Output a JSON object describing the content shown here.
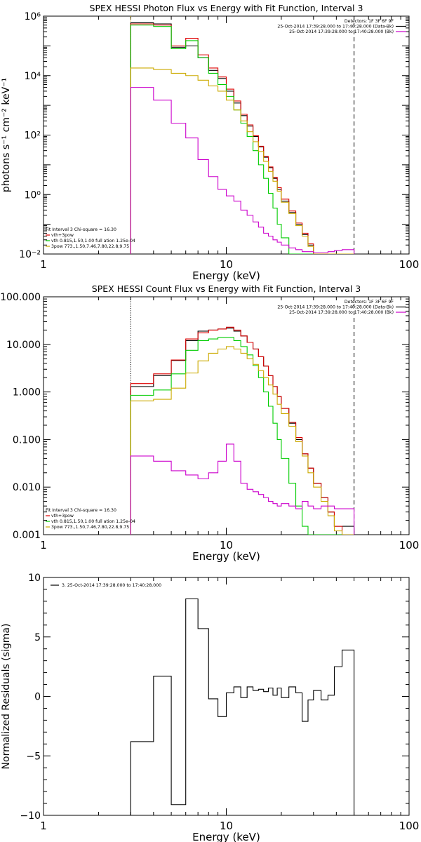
{
  "chart_data": [
    {
      "type": "line",
      "title": "SPEX HESSI Photon Flux vs Energy with Fit Function, Interval 3",
      "xlabel": "Energy (keV)",
      "ylabel": "photons s⁻¹ cm⁻² keV⁻¹",
      "x_scale": "log",
      "y_scale": "log",
      "xlim": [
        1,
        100
      ],
      "ylim": [
        0.01,
        1000000
      ],
      "x_ticks": [
        "1",
        "10",
        "100"
      ],
      "y_ticks": [
        "10⁻²",
        "10⁰",
        "10²",
        "10⁴",
        "10⁶"
      ],
      "y_tick_values": [
        0.01,
        1,
        100,
        10000,
        1000000
      ],
      "legend_top": [
        {
          "text": "Detectors: 1F 3F 6F 9F",
          "color": "#000000"
        },
        {
          "text": "25-Oct-2014 17:39:28.000 to 17:40:28.000 (Data-Bk)",
          "color": "#000000"
        },
        {
          "text": "25-Oct-2014 17:39:28.000 to 17:40:28.000 (Bk)",
          "color": "#cc00cc"
        }
      ],
      "legend_bottom": [
        {
          "text": "Fit Interval 3   Chi-square = 16.30",
          "color": "#000000"
        },
        {
          "text": "vth+3pow",
          "color": "#dd0000"
        },
        {
          "text": "vth 0.815,1.50,1.00  full ation 1.25e-04",
          "color": "#00cc00"
        },
        {
          "text": "3pow 773.,1.50,7.46,7.80,22.8,9.75",
          "color": "#ccaa00"
        }
      ],
      "vlines": [
        {
          "x": 3,
          "style": "dotted",
          "color": "#ccaa00"
        },
        {
          "x": 50,
          "style": "dashed",
          "color": "#000000"
        }
      ],
      "edges": [
        3,
        4,
        5,
        6,
        7,
        8,
        9,
        10,
        11,
        12,
        13,
        14,
        15,
        16,
        17,
        18,
        19,
        20,
        22,
        24,
        26,
        28,
        30,
        33,
        36,
        39,
        43,
        47,
        50
      ],
      "series": [
        {
          "name": "Data-Bk",
          "color": "#000000",
          "values": [
            600000,
            550000,
            90000,
            100000,
            40000,
            15000,
            8000,
            3000,
            1200,
            450,
            200,
            90,
            40,
            18,
            8,
            3.5,
            1.5,
            0.6,
            0.25,
            0.1,
            0.045,
            0.02,
            0.01,
            0.01,
            0.01,
            0.01,
            0.01,
            0.01
          ]
        },
        {
          "name": "vth+3pow",
          "color": "#dd0000",
          "values": [
            550000,
            500000,
            100000,
            180000,
            50000,
            18000,
            9000,
            3500,
            1400,
            500,
            220,
            95,
            42,
            19,
            8.5,
            3.8,
            1.7,
            0.7,
            0.28,
            0.11,
            0.05,
            0.022,
            0.01,
            0.01,
            0.01,
            0.01,
            0.01,
            0.01
          ]
        },
        {
          "name": "vth",
          "color": "#00cc00",
          "values": [
            500000,
            450000,
            80000,
            150000,
            40000,
            12000,
            5000,
            2000,
            700,
            250,
            90,
            30,
            10,
            3.5,
            1.1,
            0.35,
            0.1,
            0.035,
            0.01,
            0.01,
            0.01,
            0.01,
            0.01,
            0.01,
            0.01,
            0.01,
            0.01,
            0.01
          ]
        },
        {
          "name": "3pow",
          "color": "#ccaa00",
          "values": [
            18000,
            16000,
            12000,
            10000,
            7000,
            4500,
            3000,
            1500,
            700,
            300,
            130,
            60,
            28,
            13,
            6,
            2.8,
            1.3,
            0.55,
            0.23,
            0.09,
            0.04,
            0.018,
            0.01,
            0.01,
            0.01,
            0.01,
            0.01,
            0.01
          ]
        },
        {
          "name": "Bk",
          "color": "#cc00cc",
          "values": [
            4000,
            1500,
            250,
            80,
            15,
            4,
            1.5,
            0.9,
            0.6,
            0.3,
            0.2,
            0.12,
            0.08,
            0.05,
            0.04,
            0.03,
            0.025,
            0.02,
            0.016,
            0.014,
            0.012,
            0.012,
            0.011,
            0.011,
            0.012,
            0.013,
            0.014,
            0.014
          ]
        }
      ]
    },
    {
      "type": "line",
      "title": "SPEX HESSI Count Flux vs Energy with Fit Function, Interval 3",
      "xlabel": "Energy (keV)",
      "ylabel": "",
      "x_scale": "log",
      "y_scale": "log",
      "xlim": [
        1,
        100
      ],
      "ylim": [
        0.001,
        100
      ],
      "x_ticks": [
        "1",
        "10",
        "100"
      ],
      "y_ticks": [
        "0.001",
        "0.010",
        "0.100",
        "1.000",
        "10.000",
        "100.000"
      ],
      "y_tick_values": [
        0.001,
        0.01,
        0.1,
        1,
        10,
        100
      ],
      "legend_top": [
        {
          "text": "Detectors: 1F 3F 6F 9F",
          "color": "#000000"
        },
        {
          "text": "25-Oct-2014 17:39:28.000 to 17:40:28.000 (Data-Bk)",
          "color": "#000000"
        },
        {
          "text": "25-Oct-2014 17:39:28.000 to 17:40:28.000 (Bk)",
          "color": "#cc00cc"
        }
      ],
      "legend_bottom": [
        {
          "text": "Fit Interval 3   Chi-square = 16.30",
          "color": "#000000"
        },
        {
          "text": "vth+3pow",
          "color": "#dd0000"
        },
        {
          "text": "vth 0.815,1.50,1.00  full ation 1.25e-04",
          "color": "#00cc00"
        },
        {
          "text": "3pow 773.,1.50,7.46,7.80,22.8,9.75",
          "color": "#ccaa00"
        }
      ],
      "vlines": [
        {
          "x": 3,
          "style": "dotted",
          "color": "#000000"
        },
        {
          "x": 50,
          "style": "dashed",
          "color": "#000000"
        }
      ],
      "edges": [
        3,
        4,
        5,
        6,
        7,
        8,
        9,
        10,
        11,
        12,
        13,
        14,
        15,
        16,
        17,
        18,
        19,
        20,
        22,
        24,
        26,
        28,
        30,
        33,
        36,
        39,
        43,
        47,
        50
      ],
      "series": [
        {
          "name": "Data-Bk",
          "color": "#000000",
          "values": [
            1.3,
            2.2,
            4.6,
            12,
            19,
            20,
            21,
            22,
            19,
            15,
            11,
            8,
            5.5,
            3.5,
            2.2,
            1.3,
            0.8,
            0.45,
            0.22,
            0.1,
            0.05,
            0.025,
            0.012,
            0.006,
            0.003,
            0.0015,
            0.0015,
            0.0015
          ]
        },
        {
          "name": "vth+3pow",
          "color": "#dd0000",
          "values": [
            1.5,
            2.4,
            4.7,
            13,
            17.5,
            20,
            21,
            23,
            20,
            15,
            11,
            8,
            5.5,
            3.5,
            2.2,
            1.3,
            0.8,
            0.45,
            0.23,
            0.11,
            0.05,
            0.025,
            0.012,
            0.006,
            0.003,
            0.0015,
            0.001,
            0.001
          ]
        },
        {
          "name": "vth",
          "color": "#00cc00",
          "values": [
            0.85,
            1.1,
            2.4,
            7.5,
            12,
            13,
            14,
            14,
            12,
            9,
            6,
            3.6,
            2,
            1,
            0.5,
            0.22,
            0.1,
            0.04,
            0.012,
            0.004,
            0.0015,
            0.001,
            0.001,
            0.001,
            0.001,
            0.001,
            0.001,
            0.001
          ]
        },
        {
          "name": "3pow",
          "color": "#ccaa00",
          "values": [
            0.65,
            0.7,
            1.2,
            2.5,
            4.5,
            6.5,
            8,
            9,
            8,
            6.5,
            5,
            3.8,
            2.8,
            2,
            1.4,
            0.9,
            0.55,
            0.35,
            0.19,
            0.09,
            0.045,
            0.02,
            0.01,
            0.005,
            0.0025,
            0.0012,
            0.001,
            0.001
          ]
        },
        {
          "name": "Bk",
          "color": "#cc00cc",
          "values": [
            0.045,
            0.035,
            0.022,
            0.018,
            0.015,
            0.02,
            0.035,
            0.08,
            0.035,
            0.012,
            0.009,
            0.008,
            0.007,
            0.006,
            0.005,
            0.0045,
            0.004,
            0.0045,
            0.004,
            0.0035,
            0.005,
            0.004,
            0.0035,
            0.004,
            0.004,
            0.0035,
            0.0035,
            0.0035
          ]
        }
      ]
    },
    {
      "type": "line",
      "title": "",
      "xlabel": "Energy (keV)",
      "ylabel": "Normalized Residuals (sigma)",
      "x_scale": "log",
      "y_scale": "linear",
      "xlim": [
        1,
        100
      ],
      "ylim": [
        -10,
        10
      ],
      "x_ticks": [
        "1",
        "10",
        "100"
      ],
      "y_ticks": [
        "−10",
        "−5",
        "0",
        "5",
        "10"
      ],
      "y_tick_values": [
        -10,
        -5,
        0,
        5,
        10
      ],
      "legend_top": [
        {
          "text": "3. 25-Oct-2014 17:39:28.000 to 17:40:28.000",
          "color": "#000000"
        }
      ],
      "legend_bottom": [],
      "vlines": [],
      "edges": [
        3,
        4,
        5,
        6,
        7,
        8,
        9,
        10,
        11,
        12,
        13,
        14,
        15,
        16,
        17,
        18,
        19,
        20,
        22,
        24,
        26,
        28,
        30,
        33,
        36,
        39,
        43,
        47,
        50
      ],
      "series": [
        {
          "name": "Residuals",
          "color": "#000000",
          "values": [
            -3.8,
            1.7,
            -9.1,
            8.2,
            5.7,
            -0.2,
            -1.7,
            0.3,
            0.8,
            -0.1,
            0.8,
            0.5,
            0.6,
            0.4,
            0.7,
            0.1,
            0.7,
            -0.1,
            0.8,
            0.3,
            -2.1,
            -0.3,
            0.5,
            -0.3,
            0.1,
            2.5,
            3.9,
            3.9
          ]
        }
      ]
    }
  ]
}
